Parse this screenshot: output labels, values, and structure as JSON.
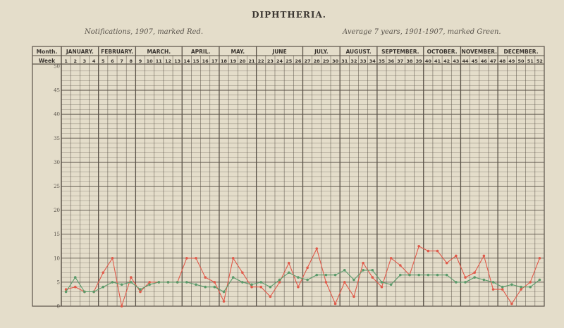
{
  "title": "DIPHTHERIA.",
  "subtitle_left": "Notifications, 1907, marked Red.",
  "subtitle_right": "Average 7 years, 1901-1907, marked Green.",
  "labels": {
    "month": "Month.",
    "week": "Week"
  },
  "colors": {
    "red": "#e05a4a",
    "green": "#5a9a6a",
    "grid": "#5a5248",
    "paper": "#e4ddca"
  },
  "chart_data": {
    "type": "line",
    "title": "DIPHTHERIA.",
    "xlabel": "Week",
    "ylabel": "",
    "ylim": [
      0,
      50
    ],
    "yticks": [
      0,
      5,
      10,
      15,
      20,
      25,
      30,
      35,
      40,
      45,
      50
    ],
    "months": [
      {
        "name": "JANUARY.",
        "weeks": [
          1,
          4
        ]
      },
      {
        "name": "FEBRUARY.",
        "weeks": [
          5,
          8
        ]
      },
      {
        "name": "MARCH.",
        "weeks": [
          9,
          13
        ]
      },
      {
        "name": "APRIL.",
        "weeks": [
          14,
          17
        ]
      },
      {
        "name": "MAY.",
        "weeks": [
          18,
          21
        ]
      },
      {
        "name": "JUNE",
        "weeks": [
          22,
          26
        ]
      },
      {
        "name": "JULY.",
        "weeks": [
          27,
          30
        ]
      },
      {
        "name": "AUGUST.",
        "weeks": [
          31,
          34
        ]
      },
      {
        "name": "SEPTEMBER.",
        "weeks": [
          35,
          39
        ]
      },
      {
        "name": "OCTOBER.",
        "weeks": [
          40,
          43
        ]
      },
      {
        "name": "NOVEMBER.",
        "weeks": [
          44,
          47
        ]
      },
      {
        "name": "DECEMBER.",
        "weeks": [
          48,
          52
        ]
      }
    ],
    "week_labels": [
      "1",
      "2",
      "3",
      "4",
      "5",
      "6",
      "7",
      "8",
      "9",
      "10",
      "11",
      "12",
      "13",
      "14",
      "15",
      "16",
      "17",
      "18",
      "19",
      "20",
      "21",
      "22",
      "23",
      "24",
      "25",
      "26",
      "27",
      "28",
      "29",
      "30",
      "31",
      "32",
      "33",
      "34",
      "35",
      "36",
      "37",
      "38",
      "39",
      "40",
      "41",
      "42",
      "43",
      "44",
      "45",
      "46",
      "47",
      "48",
      "49",
      "50",
      "51",
      "52"
    ],
    "series": [
      {
        "name": "Notifications, 1907",
        "color": "#e05a4a",
        "values": [
          3.5,
          4,
          3,
          3,
          7,
          10,
          0,
          6,
          3,
          5,
          5,
          5,
          5,
          10,
          10,
          6,
          5,
          1,
          10,
          7,
          4,
          4,
          2,
          5,
          9,
          4,
          8,
          12,
          5,
          0.5,
          5,
          2,
          9,
          6,
          4,
          10,
          8.5,
          6.5,
          12.5,
          11.5,
          11.5,
          9,
          10.5,
          6,
          7,
          10.5,
          3.5,
          3.5,
          0.5,
          3.5,
          5,
          10
        ]
      },
      {
        "name": "Average 7 years, 1901-1907",
        "color": "#5a9a6a",
        "values": [
          3,
          6,
          3,
          3,
          4,
          5,
          4.5,
          5,
          3.5,
          4.5,
          5,
          5,
          5,
          5,
          4.5,
          4,
          4,
          3,
          6,
          5,
          4.5,
          5,
          4,
          5.5,
          7,
          6,
          5.5,
          6.5,
          6.5,
          6.5,
          7.5,
          5.5,
          7.5,
          7.5,
          5,
          4.5,
          6.5,
          6.5,
          6.5,
          6.5,
          6.5,
          6.5,
          5,
          5,
          6,
          5.5,
          5,
          4,
          4.5,
          4,
          4,
          5.5
        ]
      }
    ],
    "grid": true
  }
}
